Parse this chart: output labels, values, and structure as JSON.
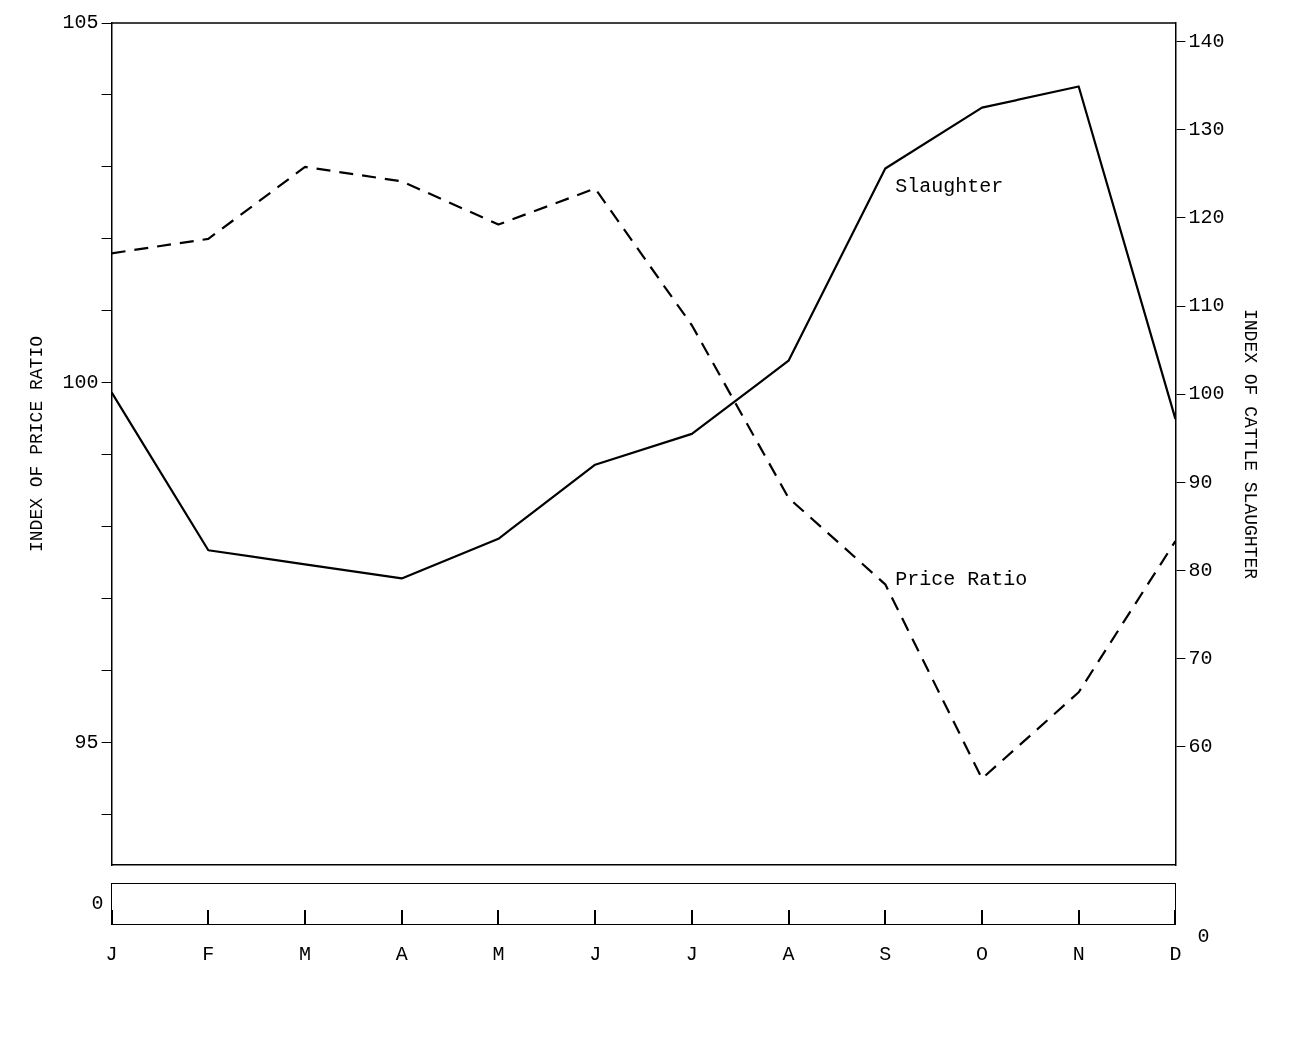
{
  "chart_data": {
    "type": "line",
    "ylabel": "INDEX OF PRICE RATIO",
    "y2label": "INDEX OF CATTLE SLAUGHTER",
    "categories": [
      "J",
      "F",
      "M",
      "A",
      "M",
      "J",
      "J",
      "A",
      "S",
      "O",
      "N",
      "D"
    ],
    "series": [
      {
        "name": "Slaughter",
        "color": "#000000",
        "axis": "y2",
        "line_style": "solid",
        "values": [
          100.2,
          82.3,
          80.7,
          79.1,
          83.6,
          92,
          95.5,
          103.8,
          125.6,
          132.5,
          134.9,
          97.2
        ]
      },
      {
        "name": "Price Ratio",
        "color": "#000000",
        "axis": "y",
        "line_style": "dashed",
        "values": [
          101.8,
          102,
          103,
          102.8,
          102.2,
          102.7,
          100.8,
          98.4,
          97.2,
          94.5,
          95.7,
          97.8
        ]
      }
    ],
    "ylim": [
      93.3,
      105
    ],
    "yticks": [
      {
        "value": 94,
        "label": null
      },
      95,
      {
        "value": 96,
        "label": null
      },
      {
        "value": 97,
        "label": null
      },
      {
        "value": 98,
        "label": null
      },
      {
        "value": 99,
        "label": null
      },
      100,
      {
        "value": 101,
        "label": null
      },
      {
        "value": 102,
        "label": null
      },
      {
        "value": 103,
        "label": null
      },
      {
        "value": 104,
        "label": null
      },
      105
    ],
    "y2lim": [
      46.6,
      142.1
    ],
    "y2ticks": [
      60,
      70,
      80,
      90,
      100,
      110,
      120,
      130,
      140
    ],
    "annotations": [
      "0",
      "0"
    ],
    "grid": false,
    "legend": false,
    "marker": "none"
  }
}
